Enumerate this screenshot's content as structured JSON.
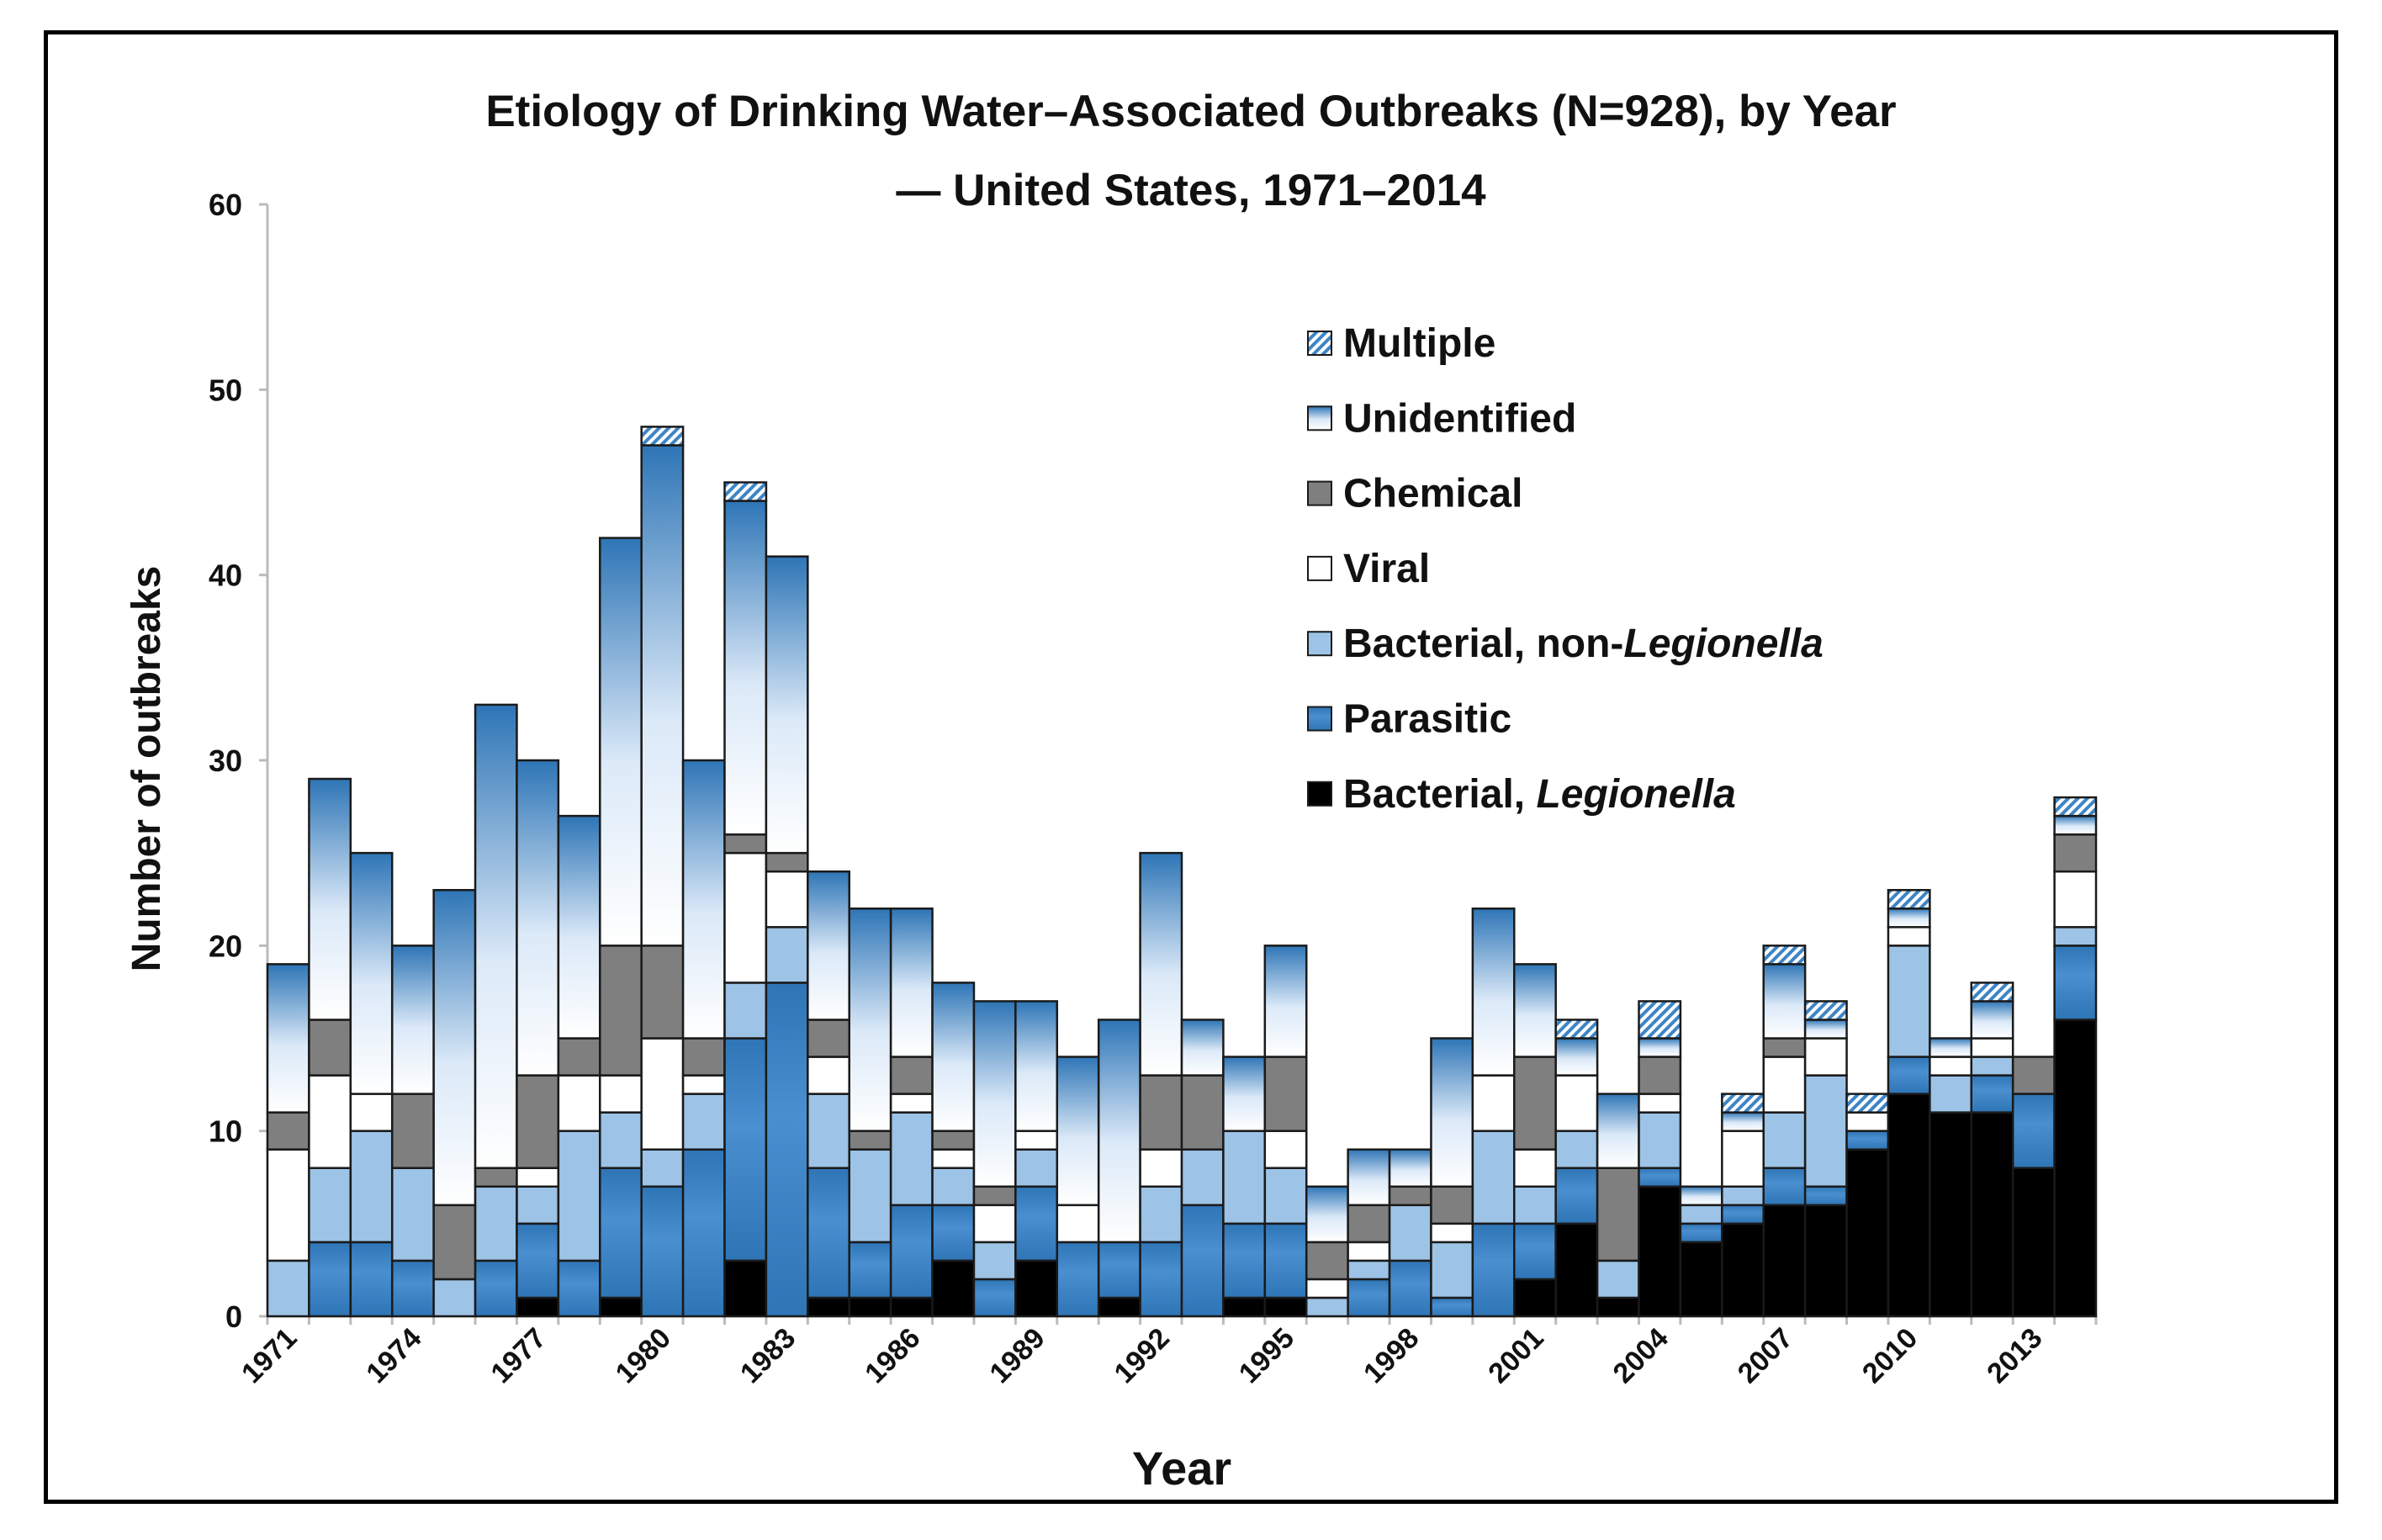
{
  "chart_data": {
    "type": "bar",
    "stacked": true,
    "title": "Etiology of Drinking Water–Associated Outbreaks (N=928), by Year",
    "subtitle": "— United States, 1971–2014",
    "xlabel": "Year",
    "ylabel": "Number of outbreaks",
    "ylim": [
      0,
      60
    ],
    "yticks": [
      0,
      10,
      20,
      30,
      40,
      50,
      60
    ],
    "xtick_labels": [
      "1971",
      "1974",
      "1977",
      "1980",
      "1983",
      "1986",
      "1989",
      "1992",
      "1995",
      "1998",
      "2001",
      "2004",
      "2007",
      "2010",
      "2013"
    ],
    "grid": false,
    "legend_position": "top-right",
    "categories": [
      "1971",
      "1972",
      "1973",
      "1974",
      "1975",
      "1976",
      "1977",
      "1978",
      "1979",
      "1980",
      "1981",
      "1982",
      "1983",
      "1984",
      "1985",
      "1986",
      "1987",
      "1988",
      "1989",
      "1990",
      "1991",
      "1992",
      "1993",
      "1994",
      "1995",
      "1996",
      "1997",
      "1998",
      "1999",
      "2000",
      "2001",
      "2002",
      "2003",
      "2004",
      "2005",
      "2006",
      "2007",
      "2008",
      "2009",
      "2010",
      "2011",
      "2012",
      "2013",
      "2014"
    ],
    "series": [
      {
        "name": "Bacterial, Legionella",
        "color": "#000000",
        "values": [
          0,
          0,
          0,
          0,
          0,
          0,
          1,
          0,
          1,
          0,
          0,
          3,
          0,
          1,
          1,
          1,
          3,
          0,
          3,
          0,
          1,
          0,
          0,
          1,
          1,
          0,
          0,
          0,
          0,
          0,
          2,
          5,
          1,
          7,
          4,
          5,
          6,
          6,
          9,
          12,
          11,
          11,
          8,
          16
        ]
      },
      {
        "name": "Parasitic",
        "color": "#2e75b6",
        "values": [
          0,
          4,
          4,
          3,
          0,
          3,
          4,
          3,
          7,
          7,
          9,
          12,
          18,
          7,
          3,
          5,
          3,
          2,
          4,
          4,
          3,
          4,
          6,
          4,
          4,
          0,
          2,
          3,
          1,
          5,
          3,
          3,
          0,
          1,
          1,
          1,
          2,
          1,
          1,
          2,
          0,
          2,
          4,
          4
        ]
      },
      {
        "name": "Bacterial, non-Legionella",
        "color": "#9dc3e6",
        "values": [
          3,
          4,
          6,
          5,
          2,
          4,
          2,
          7,
          3,
          2,
          3,
          3,
          3,
          4,
          5,
          5,
          2,
          2,
          2,
          0,
          0,
          3,
          3,
          5,
          3,
          1,
          1,
          3,
          3,
          5,
          2,
          2,
          2,
          3,
          1,
          1,
          3,
          6,
          0,
          6,
          2,
          1,
          0,
          1
        ]
      },
      {
        "name": "Viral",
        "color": "#ffffff",
        "values": [
          6,
          5,
          2,
          0,
          0,
          0,
          1,
          3,
          2,
          6,
          1,
          7,
          3,
          2,
          0,
          1,
          1,
          2,
          1,
          2,
          0,
          2,
          0,
          0,
          2,
          1,
          1,
          0,
          1,
          3,
          2,
          3,
          0,
          1,
          0,
          3,
          3,
          2,
          1,
          1,
          1,
          1,
          0,
          3
        ]
      },
      {
        "name": "Chemical",
        "color": "#7f7f7f",
        "values": [
          2,
          3,
          0,
          4,
          4,
          1,
          5,
          2,
          7,
          5,
          2,
          1,
          1,
          2,
          1,
          2,
          1,
          1,
          0,
          0,
          0,
          4,
          4,
          0,
          4,
          2,
          2,
          1,
          2,
          0,
          5,
          0,
          5,
          2,
          0,
          0,
          1,
          0,
          0,
          0,
          0,
          0,
          2,
          2
        ]
      },
      {
        "name": "Unidentified",
        "color": "#ddebf7",
        "values": [
          8,
          13,
          13,
          8,
          17,
          25,
          17,
          12,
          22,
          27,
          15,
          18,
          16,
          8,
          12,
          8,
          8,
          10,
          7,
          8,
          12,
          12,
          3,
          4,
          6,
          3,
          3,
          2,
          8,
          9,
          5,
          2,
          4,
          1,
          1,
          1,
          4,
          1,
          0,
          1,
          1,
          2,
          0,
          1
        ]
      },
      {
        "name": "Multiple",
        "color": "#5b9bd5",
        "values": [
          0,
          0,
          0,
          0,
          0,
          0,
          0,
          0,
          0,
          1,
          0,
          1,
          0,
          0,
          0,
          0,
          0,
          0,
          0,
          0,
          0,
          0,
          0,
          0,
          0,
          0,
          0,
          0,
          0,
          0,
          0,
          1,
          0,
          2,
          0,
          1,
          1,
          1,
          1,
          1,
          0,
          1,
          0,
          1
        ]
      }
    ]
  }
}
